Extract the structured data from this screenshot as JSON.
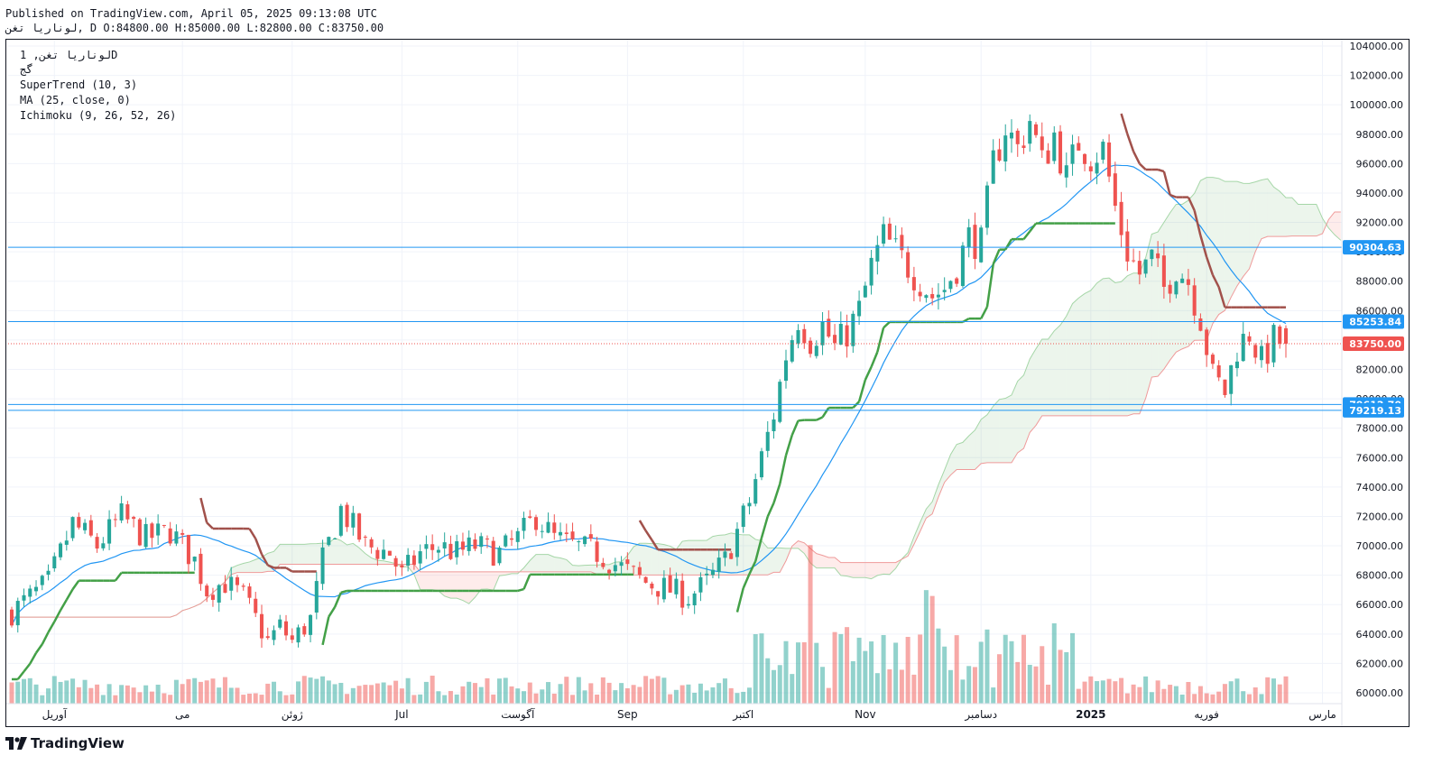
{
  "header": {
    "published": "Published on TradingView.com, April 05, 2025 09:13:08 UTC",
    "ohlc": "لوناریا تغن, D O:84800.00 H:85000.00 L:82800.00 C:83750.00"
  },
  "legend": {
    "symbol": "لوناریا تغن, 1D",
    "exchange": "گج",
    "indicators": [
      "SuperTrend (10, 3)",
      "MA (25, close, 0)",
      "Ichimoku (9, 26, 52, 26)"
    ]
  },
  "logo_text": "TradingView",
  "colors": {
    "up": "#26a69a",
    "down": "#ef5350",
    "supertrend_up": "#43a047",
    "supertrend_down": "#a1514b",
    "ma": "#2196f3",
    "level": "#2196f3"
  },
  "chart_data": {
    "type": "candlestick",
    "ylim": [
      59000,
      104500
    ],
    "y_ticks": [
      "60000.00",
      "62000.00",
      "64000.00",
      "66000.00",
      "68000.00",
      "70000.00",
      "72000.00",
      "74000.00",
      "76000.00",
      "78000.00",
      "80000.00",
      "82000.00",
      "84000.00",
      "86000.00",
      "88000.00",
      "90000.00",
      "92000.00",
      "94000.00",
      "96000.00",
      "98000.00",
      "100000.00",
      "102000.00",
      "104000.00"
    ],
    "x_labels": [
      "آوریل",
      "می",
      "ژوئن",
      "Jul",
      "آگوست",
      "Sep",
      "اکتبر",
      "Nov",
      "دسامبر",
      "2025",
      "فوریه",
      "مارس",
      "آوریل"
    ],
    "horizontal_levels": [
      {
        "value": 90304.63,
        "label": "90304.63"
      },
      {
        "value": 85253.84,
        "label": "85253.84"
      },
      {
        "value": 79612.7,
        "label": "79612.70"
      },
      {
        "value": 79219.13,
        "label": "79219.13"
      }
    ],
    "last_price": {
      "value": 83750.0,
      "label": "83750.00"
    },
    "close_path": [
      [
        0,
        65500
      ],
      [
        6,
        67500
      ],
      [
        10,
        71500
      ],
      [
        14,
        70000
      ],
      [
        18,
        72000
      ],
      [
        22,
        70500
      ],
      [
        26,
        71000
      ],
      [
        30,
        69000
      ],
      [
        32,
        67000
      ],
      [
        35,
        67500
      ],
      [
        38,
        66500
      ],
      [
        40,
        65000
      ],
      [
        42,
        63500
      ],
      [
        44,
        64500
      ],
      [
        46,
        63500
      ],
      [
        49,
        65000
      ],
      [
        51,
        69000
      ],
      [
        54,
        72500
      ],
      [
        58,
        70000
      ],
      [
        62,
        69500
      ],
      [
        64,
        68000
      ],
      [
        67,
        69500
      ],
      [
        70,
        70000
      ],
      [
        73,
        69500
      ],
      [
        76,
        70000
      ],
      [
        80,
        69500
      ],
      [
        83,
        70500
      ],
      [
        86,
        72000
      ],
      [
        89,
        70500
      ],
      [
        92,
        70000
      ],
      [
        96,
        69500
      ],
      [
        100,
        68500
      ],
      [
        104,
        67500
      ],
      [
        108,
        67000
      ],
      [
        111,
        66500
      ],
      [
        114,
        67500
      ],
      [
        117,
        69000
      ],
      [
        119,
        71000
      ],
      [
        121,
        73000
      ],
      [
        123,
        76000
      ],
      [
        125,
        79000
      ],
      [
        127,
        83000
      ],
      [
        129,
        85500
      ],
      [
        131,
        84000
      ],
      [
        133,
        85000
      ],
      [
        135,
        83500
      ],
      [
        137,
        84500
      ],
      [
        139,
        86000
      ],
      [
        141,
        89000
      ],
      [
        143,
        91000
      ],
      [
        145,
        90000
      ],
      [
        147,
        89000
      ],
      [
        149,
        88000
      ],
      [
        151,
        87000
      ],
      [
        153,
        87500
      ],
      [
        155,
        89000
      ],
      [
        157,
        91000
      ],
      [
        159,
        90500
      ],
      [
        161,
        96000
      ],
      [
        163,
        98500
      ],
      [
        165,
        97000
      ],
      [
        167,
        99000
      ],
      [
        169,
        96000
      ],
      [
        171,
        98000
      ],
      [
        173,
        95000
      ],
      [
        175,
        97500
      ],
      [
        177,
        96500
      ],
      [
        179,
        97000
      ],
      [
        181,
        93000
      ],
      [
        183,
        90000
      ],
      [
        185,
        88500
      ],
      [
        187,
        89500
      ],
      [
        189,
        87500
      ],
      [
        191,
        89000
      ],
      [
        193,
        88000
      ],
      [
        195,
        85500
      ],
      [
        197,
        81500
      ],
      [
        199,
        80500
      ],
      [
        201,
        83500
      ],
      [
        203,
        84500
      ],
      [
        205,
        82500
      ],
      [
        207,
        84000
      ],
      [
        209,
        83750
      ]
    ],
    "volume_scale": "relative (0-1), no axis printed",
    "n_bars": 210
  }
}
